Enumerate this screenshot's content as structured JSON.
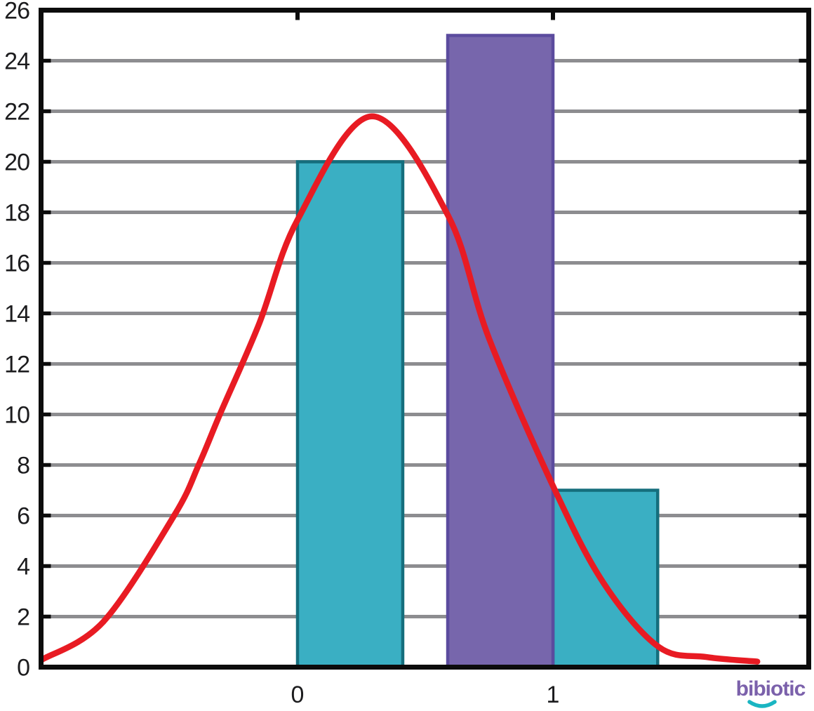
{
  "logo": {
    "text": "bibiotic",
    "text_color": "#7b61ab",
    "smile_color": "#1ab5c2"
  },
  "chart_data": {
    "type": "bar",
    "subtype": "histogram-with-normal-curve",
    "title": "",
    "xlabel": "",
    "ylabel": "",
    "xlim": [
      -1.0,
      2.0
    ],
    "ylim": [
      0,
      26
    ],
    "grid": true,
    "x_tick_values": [
      0,
      1
    ],
    "x_tick_labels": [
      "0",
      "1"
    ],
    "y_tick_values": [
      0,
      2,
      4,
      6,
      8,
      10,
      12,
      14,
      16,
      18,
      20,
      22,
      24,
      26
    ],
    "y_grid_values": [
      2,
      4,
      6,
      8,
      10,
      12,
      14,
      16,
      18,
      20,
      22,
      24
    ],
    "series": [
      {
        "name": "teal-histogram",
        "type": "bar",
        "fill_color": "#3aafc3",
        "border_color": "#156e7d",
        "bars": [
          {
            "x_start": 0.0,
            "x_end": 0.412,
            "value": 20
          },
          {
            "x_start": 1.0,
            "x_end": 1.41,
            "value": 7
          }
        ]
      },
      {
        "name": "purple-histogram",
        "type": "bar",
        "fill_color": "#7766ac",
        "border_color": "#5b4b9e",
        "bars": [
          {
            "x_start": 0.588,
            "x_end": 1.0,
            "value": 25
          }
        ]
      },
      {
        "name": "normal-curve",
        "type": "line",
        "color": "#e81b23",
        "peak": {
          "x": 0.29,
          "y": 21.8
        },
        "points": [
          [
            -1.0,
            0.3
          ],
          [
            -0.76,
            1.8
          ],
          [
            -0.483,
            6.0
          ],
          [
            -0.387,
            8.0
          ],
          [
            -0.304,
            10.0
          ],
          [
            -0.15,
            13.6
          ],
          [
            0.0,
            17.7
          ],
          [
            0.29,
            21.8
          ],
          [
            0.588,
            17.9
          ],
          [
            0.75,
            13.0
          ],
          [
            1.008,
            7.0
          ],
          [
            1.2,
            3.3
          ],
          [
            1.414,
            0.8
          ],
          [
            1.6,
            0.4
          ],
          [
            1.8,
            0.22
          ]
        ]
      }
    ],
    "colors": {
      "axis": "#0c0c0c",
      "grid": "#8d8d90",
      "label": "#1c1c1e"
    },
    "legend": null
  }
}
